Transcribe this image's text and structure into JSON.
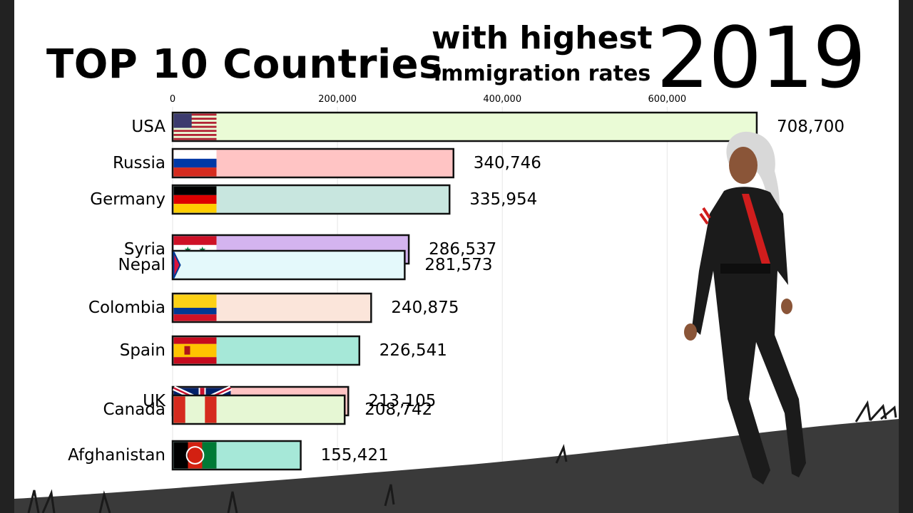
{
  "title": {
    "main": "TOP 10 Countries",
    "sub_line1": "with highest",
    "sub_line2": "immigration rates",
    "year": "2019"
  },
  "chart_data": {
    "type": "bar",
    "orientation": "horizontal",
    "xlim": [
      0,
      720000
    ],
    "ticks": [
      0,
      200000,
      400000,
      600000
    ],
    "tick_labels": [
      "0",
      "200,000",
      "400,000",
      "600,000"
    ],
    "grid": true,
    "categories": [
      "USA",
      "Russia",
      "Germany",
      "Syria",
      "Nepal",
      "Colombia",
      "Spain",
      "UK",
      "Canada",
      "Afghanistan"
    ],
    "values": [
      708700,
      340746,
      335954,
      286537,
      281573,
      240875,
      226541,
      213105,
      208742,
      155421
    ],
    "value_labels": [
      "708,700",
      "340,746",
      "335,954",
      "286,537",
      "281,573",
      "240,875",
      "226,541",
      "213,105",
      "208,742",
      "155,421"
    ],
    "colors": [
      "#eafbd6",
      "#ffc4c4",
      "#c8e6df",
      "#d4b4ef",
      "#e4f9fb",
      "#fbe5da",
      "#a6e8d8",
      "#ffc4c4",
      "#e6f7d4",
      "#a6e8d8"
    ],
    "flags": [
      "usa-flag",
      "russia-flag",
      "germany-flag",
      "syria-flag",
      "nepal-flag",
      "colombia-flag",
      "spain-flag",
      "uk-flag",
      "canada-flag",
      "afghanistan-flag"
    ]
  }
}
